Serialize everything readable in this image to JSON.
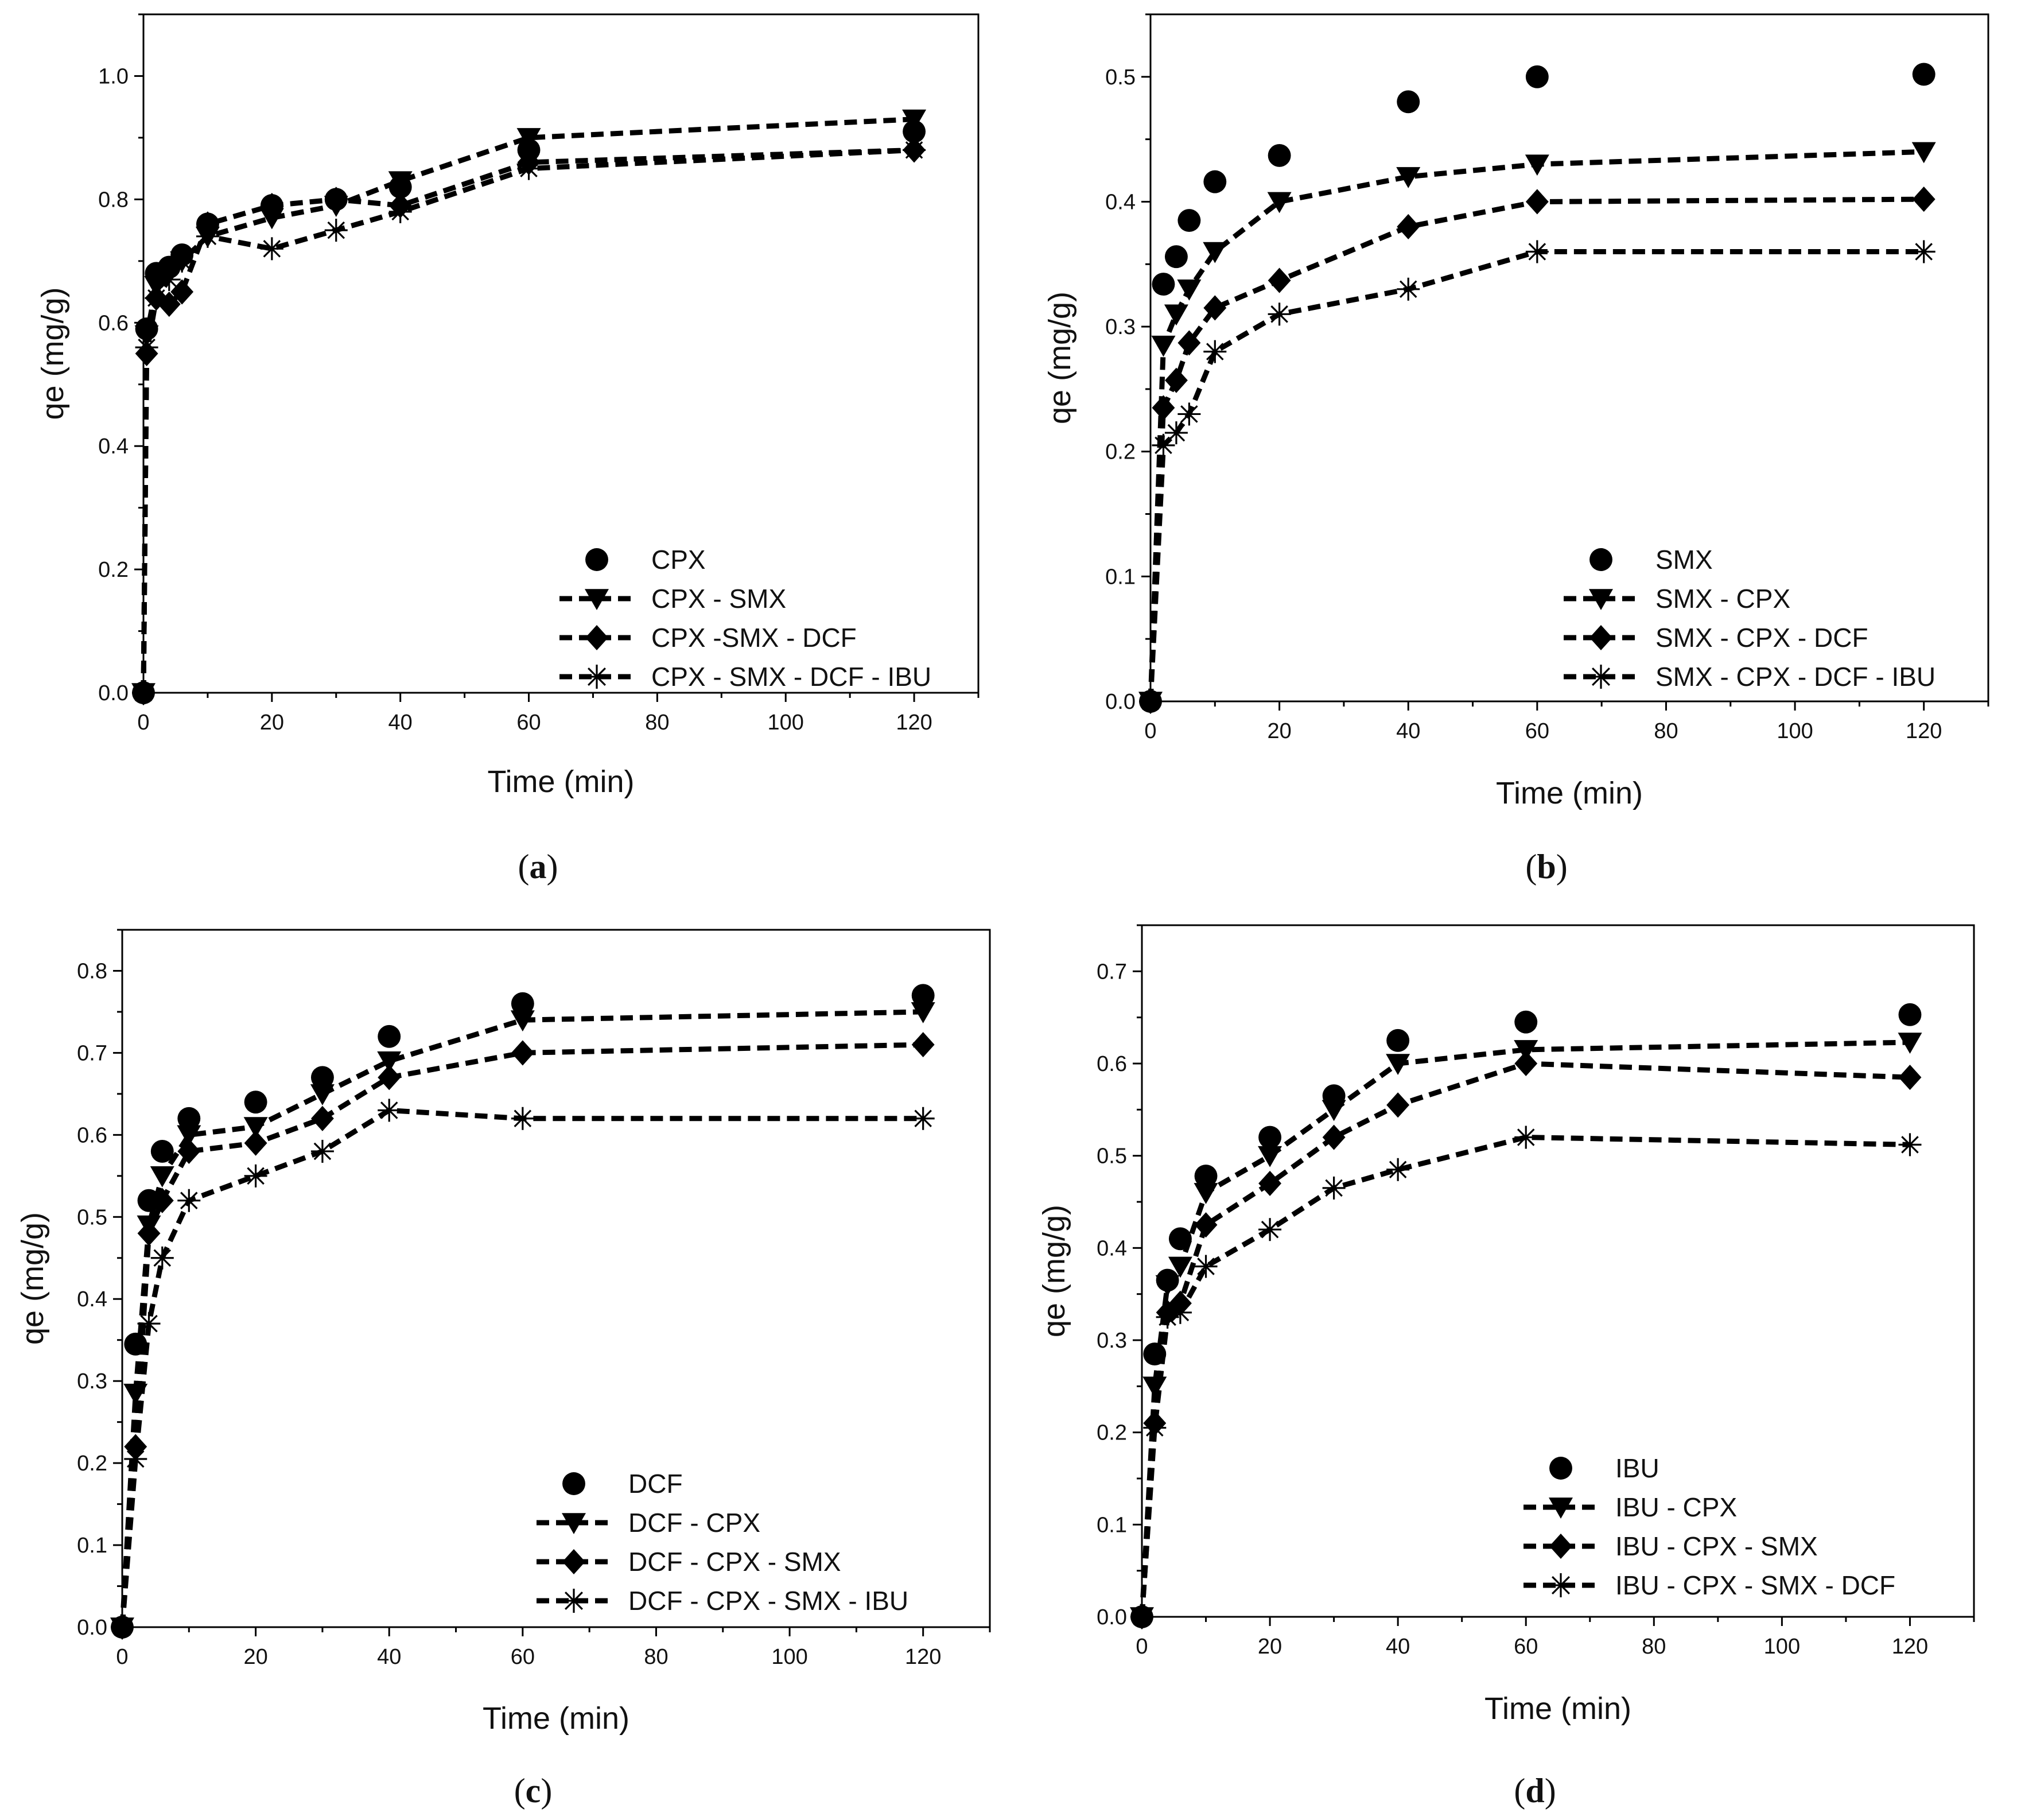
{
  "chart_data": [
    {
      "panel": "(a)",
      "panel_letter": "a",
      "type": "scatter",
      "xlabel": "Time (min)",
      "ylabel": "qe (mg/g)",
      "xlim": [
        0,
        130
      ],
      "ylim": [
        0,
        1.1
      ],
      "xticks": [
        0,
        20,
        40,
        60,
        80,
        100,
        120
      ],
      "yticks": [
        0.0,
        0.2,
        0.4,
        0.6,
        0.8,
        1.0
      ],
      "ytick_labels": [
        "0.0",
        "0.2",
        "0.4",
        "0.6",
        "0.8",
        "1.0"
      ],
      "grid": false,
      "legend_position": "bottom-right",
      "series": [
        {
          "name": "CPX",
          "marker": "circle",
          "line": false,
          "x": [
            0,
            0.5,
            2,
            4,
            6,
            10,
            20,
            30,
            40,
            60,
            120
          ],
          "y": [
            0.0,
            0.59,
            0.68,
            0.69,
            0.71,
            0.76,
            0.79,
            0.8,
            0.82,
            0.88,
            0.91
          ]
        },
        {
          "name": "CPX - SMX",
          "marker": "triangle-down",
          "line": true,
          "x": [
            0,
            0.5,
            2,
            4,
            6,
            10,
            20,
            30,
            40,
            60,
            120
          ],
          "y": [
            0.0,
            0.58,
            0.66,
            0.68,
            0.7,
            0.74,
            0.77,
            0.79,
            0.83,
            0.9,
            0.93
          ]
        },
        {
          "name": "CPX -SMX - DCF",
          "marker": "diamond",
          "line": true,
          "x": [
            0,
            0.5,
            2,
            4,
            6,
            10,
            20,
            30,
            40,
            60,
            120
          ],
          "y": [
            0.0,
            0.55,
            0.64,
            0.63,
            0.65,
            0.76,
            0.79,
            0.8,
            0.79,
            0.86,
            0.88
          ]
        },
        {
          "name": "CPX - SMX - DCF - IBU",
          "marker": "asterisk",
          "line": true,
          "x": [
            0,
            0.5,
            2,
            4,
            6,
            10,
            20,
            30,
            40,
            60,
            120
          ],
          "y": [
            0.0,
            0.56,
            0.64,
            0.67,
            0.7,
            0.74,
            0.72,
            0.75,
            0.78,
            0.85,
            0.88
          ]
        }
      ]
    },
    {
      "panel": "(b)",
      "panel_letter": "b",
      "type": "scatter",
      "xlabel": "Time (min)",
      "ylabel": "qe (mg/g)",
      "xlim": [
        0,
        130
      ],
      "ylim": [
        0,
        0.55
      ],
      "xticks": [
        0,
        20,
        40,
        60,
        80,
        100,
        120
      ],
      "yticks": [
        0.0,
        0.1,
        0.2,
        0.3,
        0.4,
        0.5
      ],
      "ytick_labels": [
        "0.0",
        "0.1",
        "0.2",
        "0.3",
        "0.4",
        "0.5"
      ],
      "grid": false,
      "legend_position": "bottom-right",
      "series": [
        {
          "name": "SMX",
          "marker": "circle",
          "line": false,
          "x": [
            0,
            2,
            4,
            6,
            10,
            20,
            40,
            60,
            120
          ],
          "y": [
            0.0,
            0.334,
            0.356,
            0.385,
            0.416,
            0.437,
            0.48,
            0.5,
            0.502
          ]
        },
        {
          "name": "SMX - CPX",
          "marker": "triangle-down",
          "line": true,
          "x": [
            0,
            2,
            4,
            6,
            10,
            20,
            40,
            60,
            120
          ],
          "y": [
            0.0,
            0.285,
            0.31,
            0.33,
            0.36,
            0.4,
            0.42,
            0.43,
            0.44
          ]
        },
        {
          "name": "SMX - CPX - DCF",
          "marker": "diamond",
          "line": true,
          "x": [
            0,
            2,
            4,
            6,
            10,
            20,
            40,
            60,
            120
          ],
          "y": [
            0.0,
            0.235,
            0.257,
            0.287,
            0.315,
            0.337,
            0.38,
            0.4,
            0.402
          ]
        },
        {
          "name": "SMX - CPX - DCF - IBU",
          "marker": "asterisk",
          "line": true,
          "x": [
            0,
            2,
            4,
            6,
            10,
            20,
            40,
            60,
            120
          ],
          "y": [
            0.0,
            0.205,
            0.215,
            0.23,
            0.28,
            0.31,
            0.33,
            0.36,
            0.36
          ]
        }
      ]
    },
    {
      "panel": "(c)",
      "panel_letter": "c",
      "type": "scatter",
      "xlabel": "Time (min)",
      "ylabel": "qe (mg/g)",
      "xlim": [
        0,
        130
      ],
      "ylim": [
        0,
        0.85
      ],
      "xticks": [
        0,
        20,
        40,
        60,
        80,
        100,
        120
      ],
      "yticks": [
        0.0,
        0.1,
        0.2,
        0.3,
        0.4,
        0.5,
        0.6,
        0.7,
        0.8
      ],
      "ytick_labels": [
        "0.0",
        "0.1",
        "0.2",
        "0.3",
        "0.4",
        "0.5",
        "0.6",
        "0.7",
        "0.8"
      ],
      "grid": false,
      "legend_position": "bottom-right",
      "series": [
        {
          "name": "DCF",
          "marker": "circle",
          "line": false,
          "x": [
            0,
            2,
            4,
            6,
            10,
            20,
            30,
            40,
            60,
            120
          ],
          "y": [
            0.0,
            0.345,
            0.52,
            0.58,
            0.62,
            0.64,
            0.67,
            0.72,
            0.76,
            0.77
          ]
        },
        {
          "name": "DCF - CPX",
          "marker": "triangle-down",
          "line": true,
          "x": [
            0,
            2,
            4,
            6,
            10,
            20,
            30,
            40,
            60,
            120
          ],
          "y": [
            0.0,
            0.285,
            0.49,
            0.55,
            0.6,
            0.61,
            0.65,
            0.69,
            0.74,
            0.75
          ]
        },
        {
          "name": "DCF - CPX - SMX",
          "marker": "diamond",
          "line": true,
          "x": [
            0,
            2,
            4,
            6,
            10,
            20,
            30,
            40,
            60,
            120
          ],
          "y": [
            0.0,
            0.22,
            0.48,
            0.52,
            0.58,
            0.59,
            0.62,
            0.67,
            0.7,
            0.71
          ]
        },
        {
          "name": "DCF - CPX - SMX - IBU",
          "marker": "asterisk",
          "line": true,
          "x": [
            0,
            2,
            4,
            6,
            10,
            20,
            30,
            40,
            60,
            120
          ],
          "y": [
            0.0,
            0.205,
            0.37,
            0.45,
            0.52,
            0.55,
            0.58,
            0.63,
            0.62,
            0.62
          ]
        }
      ]
    },
    {
      "panel": "(d)",
      "panel_letter": "d",
      "type": "scatter",
      "xlabel": "Time (min)",
      "ylabel": "qe (mg/g)",
      "xlim": [
        0,
        130
      ],
      "ylim": [
        0,
        0.75
      ],
      "xticks": [
        0,
        20,
        40,
        60,
        80,
        100,
        120
      ],
      "yticks": [
        0.0,
        0.1,
        0.2,
        0.3,
        0.4,
        0.5,
        0.6,
        0.7
      ],
      "ytick_labels": [
        "0.0",
        "0.1",
        "0.2",
        "0.3",
        "0.4",
        "0.5",
        "0.6",
        "0.7"
      ],
      "grid": false,
      "legend_position": "bottom-right",
      "series": [
        {
          "name": "IBU",
          "marker": "circle",
          "line": false,
          "x": [
            0,
            2,
            4,
            6,
            10,
            20,
            30,
            40,
            60,
            120
          ],
          "y": [
            0.0,
            0.285,
            0.365,
            0.41,
            0.478,
            0.52,
            0.565,
            0.625,
            0.645,
            0.653
          ]
        },
        {
          "name": "IBU - CPX",
          "marker": "triangle-down",
          "line": true,
          "x": [
            0,
            2,
            4,
            6,
            10,
            20,
            30,
            40,
            60,
            120
          ],
          "y": [
            0.0,
            0.25,
            0.36,
            0.38,
            0.46,
            0.5,
            0.55,
            0.6,
            0.615,
            0.623
          ]
        },
        {
          "name": "IBU - CPX - SMX",
          "marker": "diamond",
          "line": true,
          "x": [
            0,
            2,
            4,
            6,
            10,
            20,
            30,
            40,
            60,
            120
          ],
          "y": [
            0.0,
            0.21,
            0.33,
            0.34,
            0.425,
            0.47,
            0.52,
            0.555,
            0.6,
            0.585
          ]
        },
        {
          "name": "IBU - CPX - SMX - DCF",
          "marker": "asterisk",
          "line": true,
          "x": [
            0,
            2,
            4,
            6,
            10,
            20,
            30,
            40,
            60,
            120
          ],
          "y": [
            0.0,
            0.205,
            0.325,
            0.33,
            0.38,
            0.42,
            0.465,
            0.485,
            0.52,
            0.512
          ]
        }
      ]
    }
  ]
}
